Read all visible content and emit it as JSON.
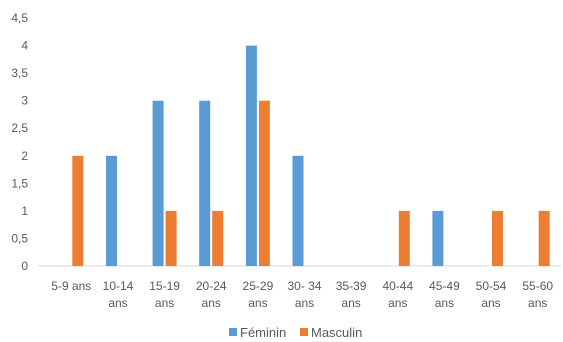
{
  "chart_data": {
    "type": "bar",
    "categories": [
      [
        "5-9 ans"
      ],
      [
        "10-14",
        "ans"
      ],
      [
        "15-19",
        "ans"
      ],
      [
        "20-24",
        "ans"
      ],
      [
        "25-29",
        "ans"
      ],
      [
        "30- 34",
        "ans"
      ],
      [
        "35-39",
        "ans"
      ],
      [
        "40-44",
        "ans"
      ],
      [
        "45-49",
        "ans"
      ],
      [
        "50-54",
        "ans"
      ],
      [
        "55-60",
        "ans"
      ]
    ],
    "series": [
      {
        "name": "Féminin",
        "color": "#5B9BD5",
        "values": [
          0,
          2,
          3,
          3,
          4,
          2,
          0,
          0,
          1,
          0,
          0
        ]
      },
      {
        "name": "Masculin",
        "color": "#ED7D31",
        "values": [
          2,
          0,
          1,
          1,
          3,
          0,
          0,
          1,
          0,
          1,
          1
        ]
      }
    ],
    "y_ticks": [
      "0",
      "0,5",
      "1",
      "1,5",
      "2",
      "2,5",
      "3",
      "3,5",
      "4",
      "4,5"
    ],
    "ylim": [
      0,
      4.5
    ],
    "grid": false,
    "legend_position": "bottom"
  }
}
